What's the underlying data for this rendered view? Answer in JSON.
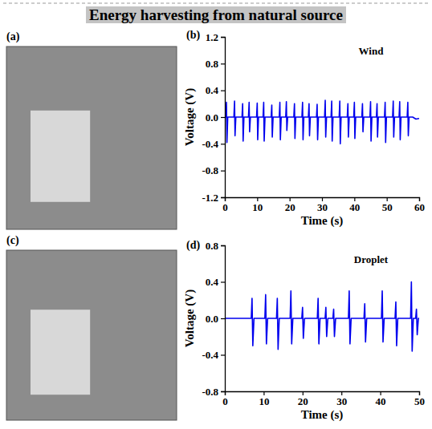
{
  "title": "Energy harvesting from natural source",
  "photos": [
    {
      "label": "(a)"
    },
    {
      "label": "(c)"
    }
  ],
  "chart_data": [
    {
      "type": "line",
      "label": "(b)",
      "annotation": "Wind",
      "x_label": "Time (s)",
      "y_label": "Voltage (V)",
      "color": "#0000ee",
      "xlim": [
        0,
        60
      ],
      "xticks": [
        0,
        10,
        20,
        30,
        40,
        50,
        60
      ],
      "ylim": [
        -1.2,
        1.2
      ],
      "yticks": [
        -1.2,
        -0.8,
        -0.4,
        {
          "value": 0,
          "label": "0.0"
        },
        0.4,
        0.8,
        1.2
      ],
      "x": [
        0,
        0.3,
        0.5,
        0.65,
        0.9,
        2.8,
        3,
        3.15,
        3.4,
        5.3,
        5.5,
        5.65,
        5.9,
        7.3,
        7.5,
        7.65,
        7.9,
        9.8,
        10,
        10.15,
        10.4,
        11.8,
        12,
        12.15,
        12.4,
        14.3,
        14.5,
        14.65,
        14.9,
        16.8,
        17,
        17.15,
        17.4,
        18.8,
        19,
        19.15,
        19.4,
        21.3,
        21.5,
        21.65,
        21.9,
        23.8,
        24,
        24.15,
        24.4,
        25.8,
        26,
        26.15,
        26.4,
        28.3,
        28.5,
        28.65,
        28.9,
        30.8,
        31,
        31.15,
        31.4,
        32.8,
        33,
        33.15,
        33.4,
        35.3,
        35.5,
        35.65,
        35.9,
        37.8,
        38,
        38.15,
        38.4,
        39.8,
        40,
        40.15,
        40.4,
        42.3,
        42.5,
        42.65,
        42.9,
        44.8,
        45,
        45.15,
        45.4,
        46.8,
        47,
        47.15,
        47.4,
        49.3,
        49.5,
        49.65,
        49.9,
        51.8,
        52,
        52.15,
        52.4,
        53.8,
        54,
        54.15,
        54.4,
        56.3,
        56.5,
        56.65,
        56.9,
        58,
        59,
        60
      ],
      "values": [
        0,
        0,
        0.22,
        -0.38,
        0,
        0,
        0.24,
        -0.28,
        0,
        0,
        0.2,
        -0.36,
        0,
        0,
        0.22,
        -0.22,
        0,
        0,
        0.21,
        -0.34,
        0,
        0,
        0.22,
        -0.36,
        0,
        0,
        0.18,
        -0.3,
        0,
        0,
        0.22,
        -0.34,
        0,
        0,
        0.23,
        -0.2,
        0,
        0,
        0.2,
        -0.32,
        0,
        0,
        0.22,
        -0.34,
        0,
        0,
        0.2,
        -0.28,
        0,
        0,
        0.19,
        -0.34,
        0,
        0,
        0.25,
        -0.3,
        0,
        0,
        0.24,
        -0.36,
        0,
        0,
        0.24,
        -0.4,
        0,
        0,
        0.2,
        -0.3,
        0,
        0,
        0.22,
        -0.32,
        0,
        0,
        0.2,
        -0.22,
        0,
        0,
        0.23,
        -0.36,
        0,
        0,
        0.2,
        -0.3,
        0,
        0,
        0.22,
        -0.38,
        0,
        0,
        0.24,
        -0.3,
        0,
        0,
        0.23,
        -0.34,
        0,
        0,
        0.22,
        -0.28,
        0,
        0,
        -0.03,
        -0.02
      ]
    },
    {
      "type": "line",
      "label": "(d)",
      "annotation": "Droplet",
      "x_label": "Time (s)",
      "y_label": "Voltage (V)",
      "color": "#0000ee",
      "xlim": [
        0,
        50
      ],
      "xticks": [
        0,
        10,
        20,
        30,
        40,
        50
      ],
      "ylim": [
        -0.8,
        0.8
      ],
      "yticks": [
        -0.8,
        -0.4,
        {
          "value": 0,
          "label": "0.0"
        },
        0.4,
        0.8
      ],
      "x": [
        0,
        6.8,
        7,
        7.2,
        7.5,
        10.3,
        10.5,
        10.7,
        11,
        13.3,
        13.5,
        13.7,
        14,
        16.8,
        17,
        17.2,
        17.5,
        19.8,
        20,
        20.2,
        20.5,
        23.8,
        24,
        24.2,
        24.5,
        25.8,
        26,
        26.2,
        26.5,
        27.8,
        28,
        28.2,
        28.5,
        31.8,
        32,
        32.2,
        32.5,
        35.8,
        36,
        36.2,
        36.5,
        40.3,
        40.5,
        40.7,
        41,
        43.8,
        44,
        44.2,
        44.5,
        47.8,
        48,
        48.2,
        48.5,
        49.1,
        49.3,
        49.5,
        49.8,
        50
      ],
      "values": [
        0,
        0,
        0.22,
        -0.3,
        0,
        0,
        0.26,
        -0.28,
        0,
        0,
        0.22,
        -0.34,
        0,
        0,
        0.3,
        -0.28,
        0,
        0,
        0.12,
        -0.22,
        0,
        0,
        0.22,
        -0.28,
        0,
        0,
        0.12,
        -0.2,
        0,
        0,
        0.1,
        -0.2,
        0,
        0,
        0.3,
        -0.28,
        0,
        0,
        0.16,
        -0.26,
        0,
        0,
        0.3,
        -0.26,
        0,
        0,
        0.18,
        -0.3,
        0,
        0,
        0.4,
        -0.36,
        0,
        0,
        0.1,
        -0.18,
        0,
        0
      ]
    }
  ]
}
